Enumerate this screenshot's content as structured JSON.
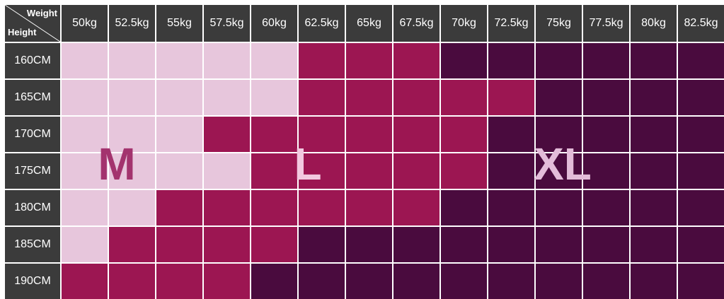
{
  "header": {
    "weight_label": "Weight",
    "height_label": "Height"
  },
  "weights": [
    "50kg",
    "52.5kg",
    "55kg",
    "57.5kg",
    "60kg",
    "62.5kg",
    "65kg",
    "67.5kg",
    "70kg",
    "72.5kg",
    "75kg",
    "77.5kg",
    "80kg",
    "82.5kg"
  ],
  "heights": [
    "160CM",
    "165CM",
    "170CM",
    "175CM",
    "180CM",
    "185CM",
    "190CM"
  ],
  "grid": [
    [
      "M",
      "M",
      "M",
      "M",
      "M",
      "L",
      "L",
      "L",
      "XL",
      "XL",
      "XL",
      "XL",
      "XL",
      "XL"
    ],
    [
      "M",
      "M",
      "M",
      "M",
      "M",
      "L",
      "L",
      "L",
      "L",
      "L",
      "XL",
      "XL",
      "XL",
      "XL"
    ],
    [
      "M",
      "M",
      "M",
      "L",
      "L",
      "L",
      "L",
      "L",
      "L",
      "XL",
      "XL",
      "XL",
      "XL",
      "XL"
    ],
    [
      "M",
      "M",
      "M",
      "M",
      "L",
      "L",
      "L",
      "L",
      "L",
      "XL",
      "XL",
      "XL",
      "XL",
      "XL"
    ],
    [
      "M",
      "M",
      "L",
      "L",
      "L",
      "L",
      "L",
      "L",
      "XL",
      "XL",
      "XL",
      "XL",
      "XL",
      "XL"
    ],
    [
      "M",
      "L",
      "L",
      "L",
      "L",
      "XL",
      "XL",
      "XL",
      "XL",
      "XL",
      "XL",
      "XL",
      "XL",
      "XL"
    ],
    [
      "L",
      "L",
      "L",
      "L",
      "XL",
      "XL",
      "XL",
      "XL",
      "XL",
      "XL",
      "XL",
      "XL",
      "XL",
      "XL"
    ]
  ],
  "sizes": {
    "M": {
      "label": "M",
      "color": "#e7c6dc",
      "text_color": "#a3336e"
    },
    "L": {
      "label": "L",
      "color": "#9c1652",
      "text_color": "#f2c9e0"
    },
    "XL": {
      "label": "XL",
      "color": "#4a0b3e",
      "text_color": "#e3bcd9"
    }
  },
  "colors": {
    "header_bg": "#3b3b3b",
    "header_text": "#ffffff",
    "grid_line": "#ffffff"
  }
}
